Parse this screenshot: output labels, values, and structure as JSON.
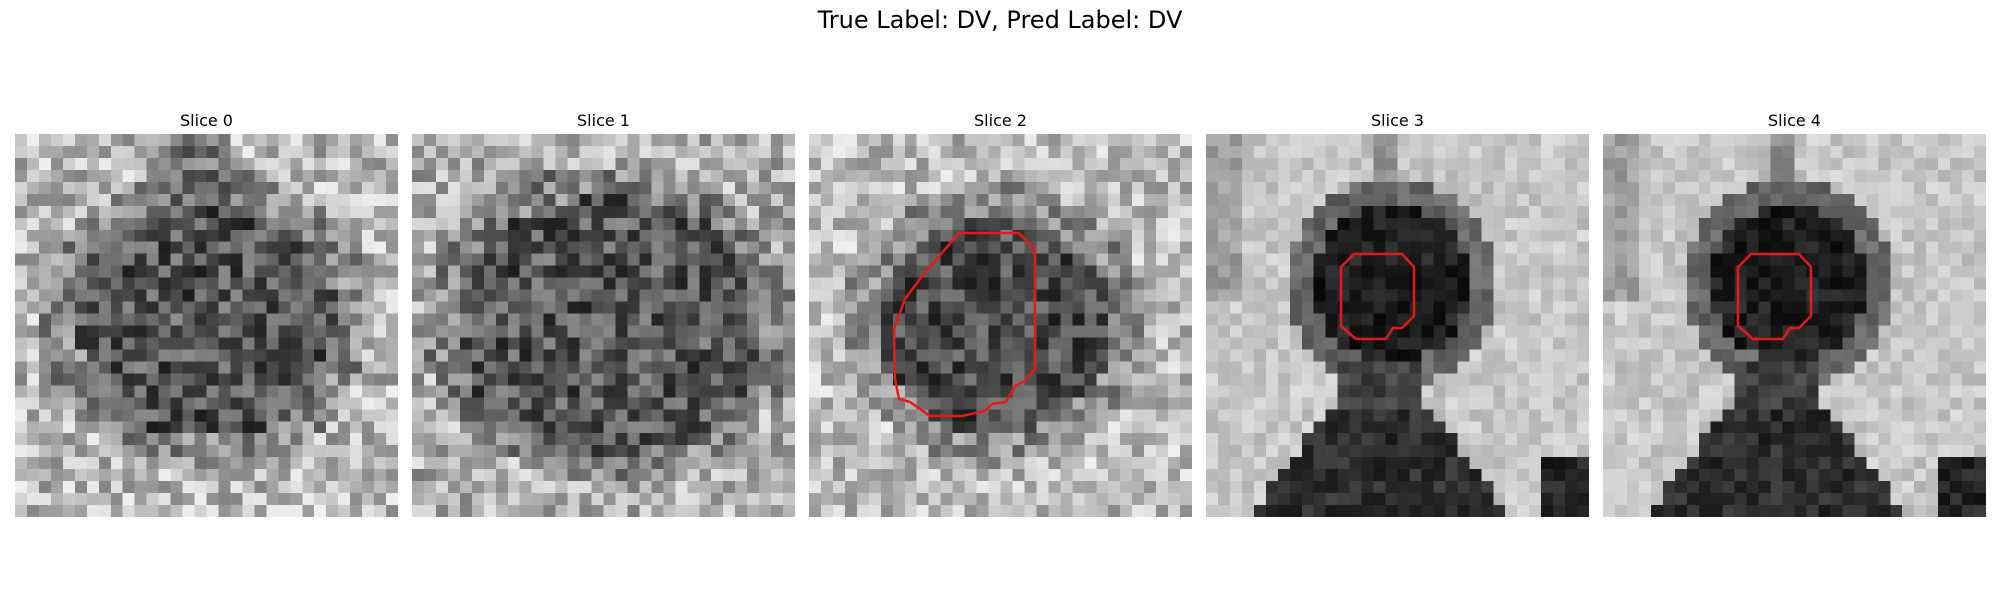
{
  "figure": {
    "suptitle": "True Label: DV, Pred Label: DV",
    "contour_color": "#e41a1c",
    "panels": [
      {
        "title": "Slice 0",
        "style": "noisy-blob",
        "has_contour": false
      },
      {
        "title": "Slice 1",
        "style": "noisy-blob-large",
        "has_contour": false
      },
      {
        "title": "Slice 2",
        "style": "noisy-blob-center",
        "has_contour": true
      },
      {
        "title": "Slice 3",
        "style": "smooth-vessel",
        "has_contour": true
      },
      {
        "title": "Slice 4",
        "style": "smooth-vessel",
        "has_contour": true
      }
    ]
  }
}
